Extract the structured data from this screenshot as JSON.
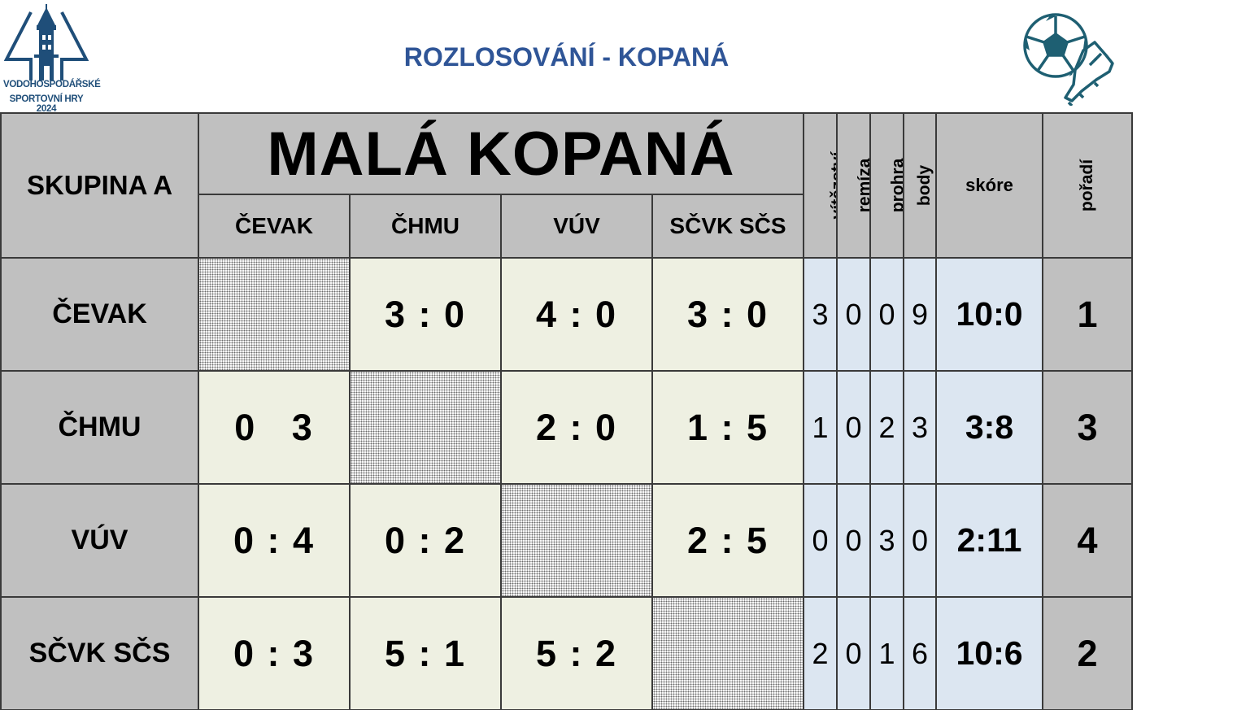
{
  "header": {
    "title": "ROZLOSOVÁNÍ - KOPANÁ",
    "logo": {
      "line1": "VODOHOSPODÁŘSKÉ",
      "line2": "SPORTOVNÍ HRY 2024",
      "icon": "tower-emblem-icon",
      "color": "#1f4e79"
    },
    "sport_icon": "football-boot-icon",
    "accent_color": "#2f5597"
  },
  "table": {
    "group_label": "SKUPINA A",
    "main_title": "MALÁ KOPANÁ",
    "columns": [
      "ČEVAK",
      "ČHMU",
      "VÚV",
      "SČVK SČS"
    ],
    "stat_headers": {
      "wins": "vítězství",
      "draws": "remíza",
      "losses": "prohra",
      "points": "body",
      "score": "skóre",
      "rank": "pořadí"
    },
    "rows": [
      {
        "team": "ČEVAK",
        "results": [
          "",
          "3 : 0",
          "4 : 0",
          "3 : 0"
        ],
        "wins": "3",
        "draws": "0",
        "losses": "0",
        "points": "9",
        "score": "10:0",
        "rank": "1"
      },
      {
        "team": "ČHMU",
        "results": [
          "0   3",
          "",
          "2 : 0",
          "1 : 5"
        ],
        "wins": "1",
        "draws": "0",
        "losses": "2",
        "points": "3",
        "score": "3:8",
        "rank": "3"
      },
      {
        "team": "VÚV",
        "results": [
          "0 : 4",
          "0 : 2",
          "",
          "2 : 5"
        ],
        "wins": "0",
        "draws": "0",
        "losses": "3",
        "points": "0",
        "score": "2:11",
        "rank": "4"
      },
      {
        "team": "SČVK SČS",
        "results": [
          "0 : 3",
          "5 : 1",
          "5 : 2",
          ""
        ],
        "wins": "2",
        "draws": "0",
        "losses": "1",
        "points": "6",
        "score": "10:6",
        "rank": "2"
      }
    ],
    "colors": {
      "header_gray": "#c0c0c0",
      "result_green": "#eef0e2",
      "stats_blue": "#dce6f1"
    }
  }
}
